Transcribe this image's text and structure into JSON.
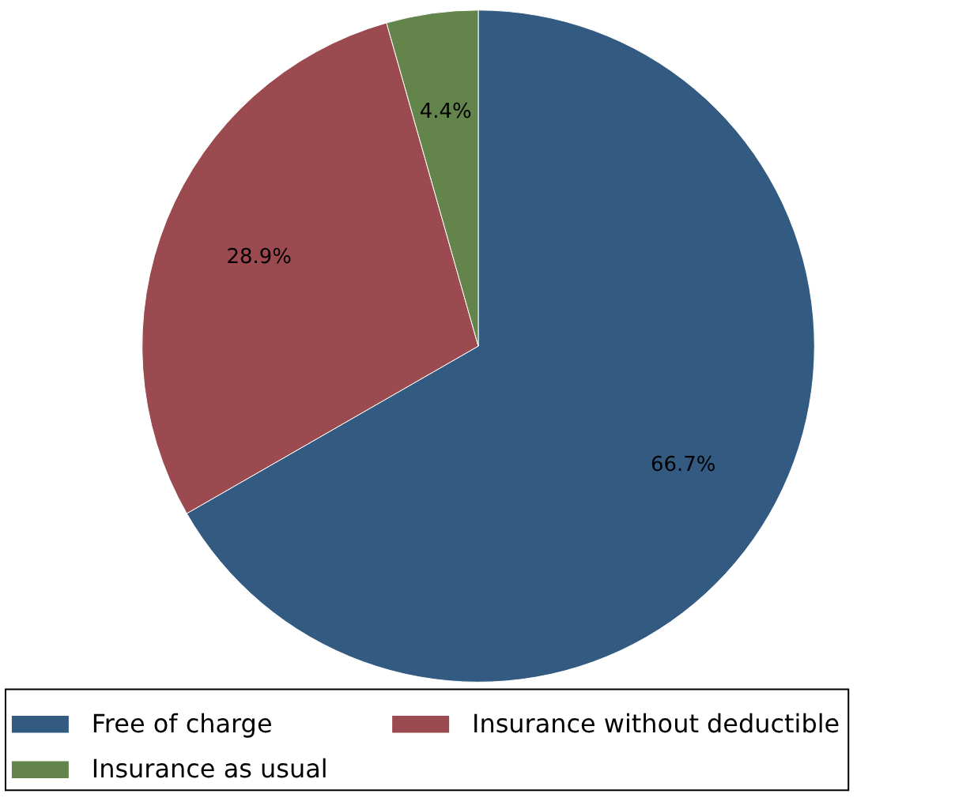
{
  "chart_data": {
    "type": "pie",
    "categories": [
      "Free of charge",
      "Insurance without deductible",
      "Insurance as usual"
    ],
    "values": [
      66.7,
      28.9,
      4.4
    ],
    "value_labels": [
      "66.7%",
      "28.9%",
      "4.4%"
    ],
    "colors": [
      "#335a80",
      "#9b4a4f",
      "#63844a"
    ],
    "legend": "bottom"
  }
}
